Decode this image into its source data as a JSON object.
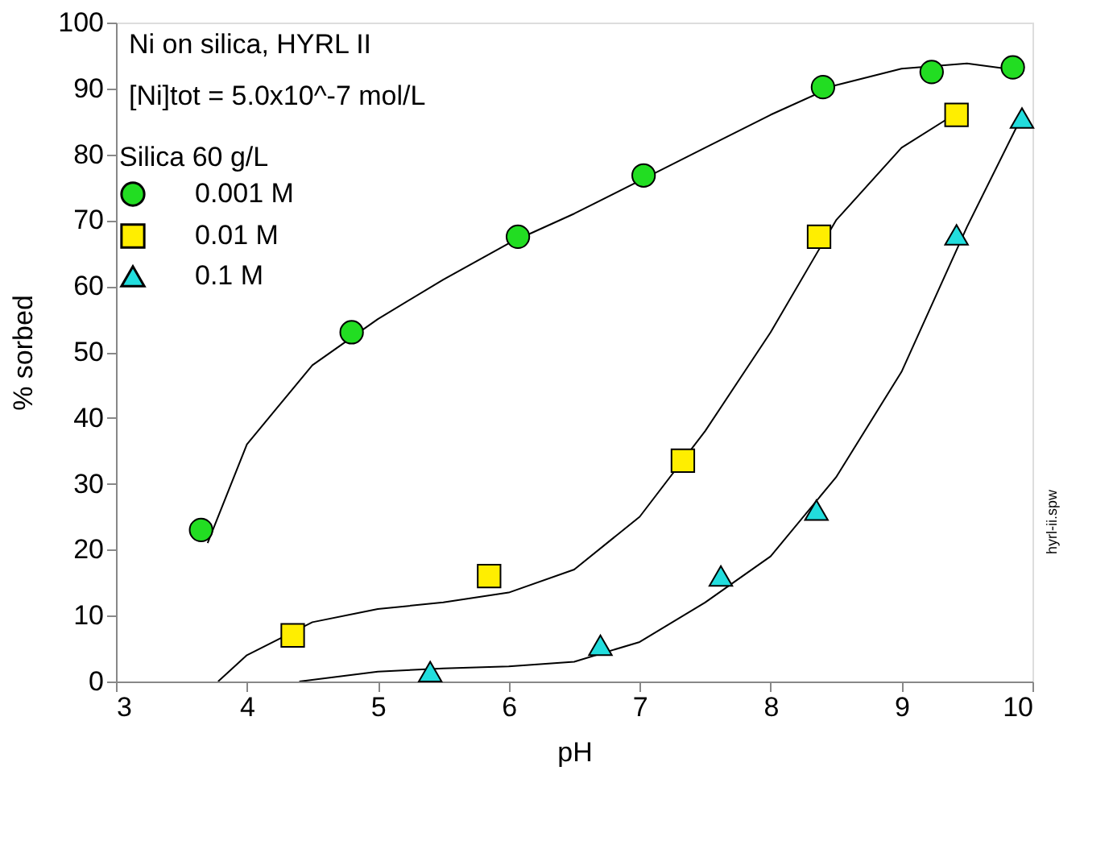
{
  "chart_data": {
    "type": "scatter",
    "xlabel": "pH",
    "ylabel": "% sorbed",
    "xlim": [
      3,
      10
    ],
    "ylim": [
      0,
      100
    ],
    "xticks": [
      3,
      4,
      5,
      6,
      7,
      8,
      9,
      10
    ],
    "yticks": [
      0,
      10,
      20,
      30,
      40,
      50,
      60,
      70,
      80,
      90,
      100
    ],
    "grid": false,
    "legend": "top left",
    "legend_title": "Silica 60 g/L",
    "annotations": [
      "Ni on silica, HYRL II",
      "[Ni]tot = 5.0x10^-7 mol/L",
      "hyrl-ii.spw"
    ],
    "series": [
      {
        "name": "0.001 M",
        "marker": "circle",
        "color": "#22dd22",
        "x": [
          3.65,
          4.8,
          6.07,
          7.03,
          8.4,
          9.23,
          9.85
        ],
        "values": [
          23,
          53,
          67.5,
          76.8,
          90.2,
          92.5,
          93.2
        ]
      },
      {
        "name": "0.01 M",
        "marker": "square",
        "color": "#ffee00",
        "x": [
          4.35,
          5.85,
          7.33,
          8.37,
          9.42
        ],
        "values": [
          7,
          16,
          33.5,
          67.5,
          86
        ]
      },
      {
        "name": "0.1 M",
        "marker": "triangle",
        "color": "#22dddd",
        "x": [
          5.4,
          6.7,
          7.62,
          8.35,
          9.42,
          9.92
        ],
        "values": [
          1.5,
          5.5,
          16,
          26,
          67.8,
          85.5
        ]
      },
      {
        "type": "line",
        "color": "#000000",
        "x": [
          3.7,
          4,
          4.5,
          5,
          5.5,
          6,
          6.5,
          7,
          7.5,
          8,
          8.5,
          9,
          9.5,
          9.8,
          9.9
        ],
        "values": [
          21,
          36,
          48,
          55,
          61,
          66.5,
          71,
          76,
          81,
          86,
          90.5,
          93,
          93.8,
          93,
          92
        ]
      },
      {
        "type": "line",
        "color": "#000000",
        "x": [
          3.78,
          4,
          4.5,
          5,
          5.5,
          6,
          6.5,
          7,
          7.5,
          8,
          8.5,
          9,
          9.4
        ],
        "values": [
          0,
          4,
          9,
          11,
          12,
          13.5,
          17,
          25,
          38,
          53,
          70,
          81,
          86
        ]
      },
      {
        "type": "line",
        "color": "#000000",
        "x": [
          4.4,
          5,
          5.5,
          6,
          6.5,
          7,
          7.5,
          8,
          8.5,
          9,
          9.5,
          9.9
        ],
        "values": [
          0,
          1.5,
          2,
          2.3,
          3,
          6,
          12,
          19,
          31,
          47,
          69,
          85
        ]
      }
    ]
  }
}
